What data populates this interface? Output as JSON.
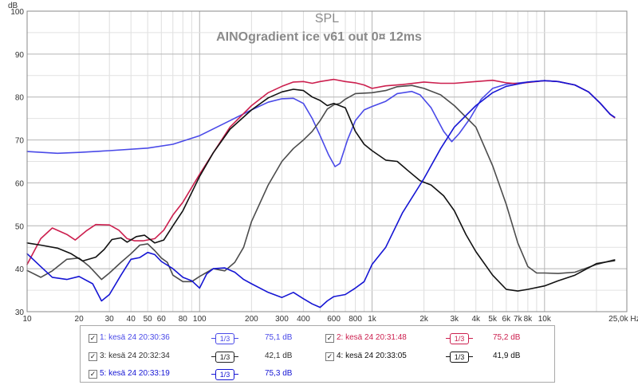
{
  "chart_data": {
    "type": "line",
    "title": "SPL",
    "subtitle": "AINOgradient ice v61 out 0¤ 12ms",
    "ylabel": "dB",
    "xlabel": "",
    "x_scale": "log",
    "xlim": [
      10,
      30000
    ],
    "ylim": [
      30,
      100
    ],
    "grid": true,
    "x_unit": "Hz",
    "y_ticks": [
      "30",
      "40",
      "50",
      "60",
      "70",
      "80",
      "90",
      "100"
    ],
    "x_ticks": [
      {
        "v": 10,
        "label": "10"
      },
      {
        "v": 20,
        "label": "20"
      },
      {
        "v": 30,
        "label": "30"
      },
      {
        "v": 40,
        "label": "40"
      },
      {
        "v": 50,
        "label": "50"
      },
      {
        "v": 60,
        "label": "60"
      },
      {
        "v": 80,
        "label": "80"
      },
      {
        "v": 100,
        "label": "100"
      },
      {
        "v": 200,
        "label": "200"
      },
      {
        "v": 300,
        "label": "300"
      },
      {
        "v": 400,
        "label": "400"
      },
      {
        "v": 600,
        "label": "600"
      },
      {
        "v": 800,
        "label": "800"
      },
      {
        "v": 1000,
        "label": "1k"
      },
      {
        "v": 2000,
        "label": "2k"
      },
      {
        "v": 3000,
        "label": "3k"
      },
      {
        "v": 4000,
        "label": "4k"
      },
      {
        "v": 5000,
        "label": "5k"
      },
      {
        "v": 6000,
        "label": "6k"
      },
      {
        "v": 7000,
        "label": "7k"
      },
      {
        "v": 8000,
        "label": "8k"
      },
      {
        "v": 10000,
        "label": "10k"
      },
      {
        "v": 25000,
        "label": "25,0k Hz"
      }
    ],
    "series": [
      {
        "name": "1: kesä 24 20:30:36",
        "color": "#4a4ae8",
        "width": 1.6,
        "smoothing": "1/3",
        "value": "75,1 dB",
        "points": [
          [
            10,
            67.3
          ],
          [
            15,
            66.9
          ],
          [
            20,
            67.1
          ],
          [
            30,
            67.5
          ],
          [
            50,
            68.1
          ],
          [
            70,
            69
          ],
          [
            100,
            71
          ],
          [
            150,
            74.5
          ],
          [
            200,
            77
          ],
          [
            250,
            78.8
          ],
          [
            300,
            79.6
          ],
          [
            350,
            79.7
          ],
          [
            400,
            78.5
          ],
          [
            450,
            75
          ],
          [
            500,
            71
          ],
          [
            560,
            66.5
          ],
          [
            610,
            63.8
          ],
          [
            650,
            64.5
          ],
          [
            720,
            70
          ],
          [
            800,
            74.5
          ],
          [
            900,
            77
          ],
          [
            1000,
            77.8
          ],
          [
            1200,
            79
          ],
          [
            1400,
            80.8
          ],
          [
            1700,
            81.3
          ],
          [
            1900,
            80.5
          ],
          [
            2200,
            77.5
          ],
          [
            2600,
            72
          ],
          [
            2900,
            69.6
          ],
          [
            3200,
            71.5
          ],
          [
            3700,
            75
          ],
          [
            4300,
            79.5
          ],
          [
            5000,
            82
          ],
          [
            6000,
            83
          ],
          [
            8000,
            83.5
          ],
          [
            10000,
            83.8
          ],
          [
            12000,
            83.6
          ],
          [
            15000,
            82.8
          ],
          [
            18000,
            81.2
          ],
          [
            21000,
            78.6
          ],
          [
            24000,
            76
          ],
          [
            25500,
            75.2
          ]
        ]
      },
      {
        "name": "2: kesä 24 20:31:48",
        "color": "#cc1f4e",
        "width": 1.6,
        "smoothing": "1/3",
        "value": "75,2 dB",
        "points": [
          [
            10,
            41
          ],
          [
            12,
            47
          ],
          [
            14,
            49.5
          ],
          [
            17,
            48
          ],
          [
            19,
            46.7
          ],
          [
            22,
            48.8
          ],
          [
            25,
            50.3
          ],
          [
            30,
            50.2
          ],
          [
            34,
            49
          ],
          [
            38,
            47
          ],
          [
            42,
            46.5
          ],
          [
            47,
            46.5
          ],
          [
            55,
            47
          ],
          [
            62,
            49
          ],
          [
            70,
            52.5
          ],
          [
            80,
            55.5
          ],
          [
            100,
            62
          ],
          [
            120,
            67
          ],
          [
            150,
            73
          ],
          [
            200,
            78
          ],
          [
            250,
            81
          ],
          [
            300,
            82.5
          ],
          [
            350,
            83.5
          ],
          [
            400,
            83.6
          ],
          [
            450,
            83.2
          ],
          [
            500,
            83.6
          ],
          [
            600,
            84.1
          ],
          [
            700,
            83.6
          ],
          [
            800,
            83.3
          ],
          [
            900,
            82.8
          ],
          [
            1000,
            82
          ],
          [
            1200,
            82.6
          ],
          [
            1500,
            82.9
          ],
          [
            2000,
            83.5
          ],
          [
            2500,
            83.2
          ],
          [
            3000,
            83.2
          ],
          [
            4000,
            83.6
          ],
          [
            5000,
            83.9
          ],
          [
            6000,
            83.3
          ],
          [
            7000,
            83.1
          ],
          [
            8000,
            83.4
          ],
          [
            10000,
            83.8
          ],
          [
            12000,
            83.6
          ],
          [
            15000,
            82.8
          ],
          [
            18000,
            81.2
          ],
          [
            21000,
            78.6
          ],
          [
            24000,
            76
          ],
          [
            25500,
            75.2
          ]
        ]
      },
      {
        "name": "3: kesä 24 20:32:34",
        "color": "#4c4c4c",
        "width": 1.6,
        "smoothing": "1/3",
        "value": "42,1 dB",
        "points": [
          [
            10,
            39.6
          ],
          [
            12,
            38
          ],
          [
            14,
            39.5
          ],
          [
            17,
            42.2
          ],
          [
            20,
            42.5
          ],
          [
            23,
            40.5
          ],
          [
            27,
            37.5
          ],
          [
            30,
            39
          ],
          [
            35,
            41.5
          ],
          [
            40,
            43.5
          ],
          [
            45,
            45.5
          ],
          [
            50,
            45.8
          ],
          [
            55,
            44.2
          ],
          [
            60,
            42.5
          ],
          [
            65,
            41.5
          ],
          [
            70,
            38.5
          ],
          [
            80,
            37
          ],
          [
            90,
            37
          ],
          [
            100,
            38.2
          ],
          [
            120,
            40
          ],
          [
            140,
            39.5
          ],
          [
            160,
            41.5
          ],
          [
            180,
            45
          ],
          [
            200,
            51
          ],
          [
            250,
            59.5
          ],
          [
            300,
            65
          ],
          [
            350,
            68
          ],
          [
            400,
            70
          ],
          [
            450,
            72
          ],
          [
            500,
            74.5
          ],
          [
            550,
            77.2
          ],
          [
            600,
            78.2
          ],
          [
            650,
            78.5
          ],
          [
            700,
            79.5
          ],
          [
            800,
            80.8
          ],
          [
            1000,
            81
          ],
          [
            1200,
            81.5
          ],
          [
            1400,
            82.4
          ],
          [
            1700,
            82.7
          ],
          [
            2000,
            82
          ],
          [
            2500,
            80.5
          ],
          [
            3000,
            78
          ],
          [
            4000,
            73
          ],
          [
            5000,
            64
          ],
          [
            6000,
            55
          ],
          [
            7000,
            46
          ],
          [
            8000,
            40.5
          ],
          [
            9000,
            39
          ],
          [
            10000,
            39
          ],
          [
            12000,
            38.9
          ],
          [
            15000,
            39.2
          ],
          [
            20000,
            41
          ],
          [
            25500,
            42.1
          ]
        ]
      },
      {
        "name": "4: kesä 24 20:33:05",
        "color": "#111111",
        "width": 1.6,
        "smoothing": "1/3",
        "value": "41,9 dB",
        "points": [
          [
            10,
            46
          ],
          [
            12,
            45.5
          ],
          [
            15,
            44.8
          ],
          [
            18,
            43.5
          ],
          [
            21,
            41.8
          ],
          [
            25,
            42.7
          ],
          [
            28,
            44.5
          ],
          [
            31,
            46.8
          ],
          [
            35,
            47.2
          ],
          [
            38,
            46.2
          ],
          [
            43,
            47.5
          ],
          [
            48,
            47.8
          ],
          [
            55,
            46
          ],
          [
            62,
            46.7
          ],
          [
            70,
            50
          ],
          [
            80,
            53.5
          ],
          [
            100,
            61.5
          ],
          [
            120,
            67
          ],
          [
            150,
            72.5
          ],
          [
            200,
            77
          ],
          [
            250,
            79.8
          ],
          [
            300,
            81.2
          ],
          [
            350,
            81.8
          ],
          [
            400,
            81.5
          ],
          [
            450,
            80
          ],
          [
            500,
            79.2
          ],
          [
            550,
            78
          ],
          [
            600,
            78.5
          ],
          [
            700,
            77.5
          ],
          [
            800,
            72
          ],
          [
            900,
            69
          ],
          [
            1000,
            67.5
          ],
          [
            1200,
            65.3
          ],
          [
            1400,
            65
          ],
          [
            1600,
            63
          ],
          [
            1900,
            60.5
          ],
          [
            2200,
            59.5
          ],
          [
            2600,
            57
          ],
          [
            3000,
            53.5
          ],
          [
            3500,
            48
          ],
          [
            4000,
            44
          ],
          [
            5000,
            38.5
          ],
          [
            6000,
            35.2
          ],
          [
            7000,
            34.8
          ],
          [
            8000,
            35.2
          ],
          [
            10000,
            36
          ],
          [
            12000,
            37.2
          ],
          [
            15000,
            38.5
          ],
          [
            20000,
            41.2
          ],
          [
            25500,
            41.9
          ]
        ]
      },
      {
        "name": "5: kesä 24 20:33:19",
        "color": "#1515d4",
        "width": 1.6,
        "smoothing": "1/3",
        "value": "75,3 dB",
        "points": [
          [
            10,
            43.5
          ],
          [
            12,
            40.5
          ],
          [
            14,
            38
          ],
          [
            17,
            37.5
          ],
          [
            20,
            38.2
          ],
          [
            24,
            36.5
          ],
          [
            27,
            32.5
          ],
          [
            30,
            34
          ],
          [
            35,
            38.5
          ],
          [
            40,
            42.2
          ],
          [
            45,
            42.6
          ],
          [
            50,
            43.8
          ],
          [
            55,
            43.3
          ],
          [
            60,
            41.7
          ],
          [
            70,
            40
          ],
          [
            80,
            38
          ],
          [
            90,
            37.2
          ],
          [
            100,
            35.5
          ],
          [
            110,
            38.8
          ],
          [
            120,
            40
          ],
          [
            140,
            40.2
          ],
          [
            160,
            39.2
          ],
          [
            180,
            37.5
          ],
          [
            200,
            36.5
          ],
          [
            250,
            34.5
          ],
          [
            300,
            33.3
          ],
          [
            350,
            34.5
          ],
          [
            400,
            33
          ],
          [
            450,
            31.8
          ],
          [
            500,
            31
          ],
          [
            550,
            32.5
          ],
          [
            600,
            33.5
          ],
          [
            700,
            34
          ],
          [
            800,
            35.5
          ],
          [
            900,
            37
          ],
          [
            1000,
            41
          ],
          [
            1200,
            45
          ],
          [
            1500,
            53
          ],
          [
            2000,
            61
          ],
          [
            2500,
            68
          ],
          [
            3000,
            73
          ],
          [
            4000,
            78
          ],
          [
            5000,
            81
          ],
          [
            6000,
            82.5
          ],
          [
            8000,
            83.5
          ],
          [
            10000,
            83.8
          ],
          [
            12000,
            83.6
          ],
          [
            15000,
            82.8
          ],
          [
            18000,
            81.2
          ],
          [
            21000,
            78.6
          ],
          [
            24000,
            76
          ],
          [
            25500,
            75.3
          ]
        ]
      }
    ]
  },
  "legend": {
    "octave_label": "1/3",
    "items": [
      {
        "check": "✓",
        "name": "1: kesä 24 20:30:36",
        "oct": "1/3",
        "value": "75,1 dB"
      },
      {
        "check": "✓",
        "name": "2: kesä 24 20:31:48",
        "oct": "1/3",
        "value": "75,2 dB"
      },
      {
        "check": "✓",
        "name": "3: kesä 24 20:32:34",
        "oct": "1/3",
        "value": "42,1 dB"
      },
      {
        "check": "✓",
        "name": "4: kesä 24 20:33:05",
        "oct": "1/3",
        "value": "41,9 dB"
      },
      {
        "check": "✓",
        "name": "5: kesä 24 20:33:19",
        "oct": "1/3",
        "value": "75,3 dB"
      }
    ]
  }
}
